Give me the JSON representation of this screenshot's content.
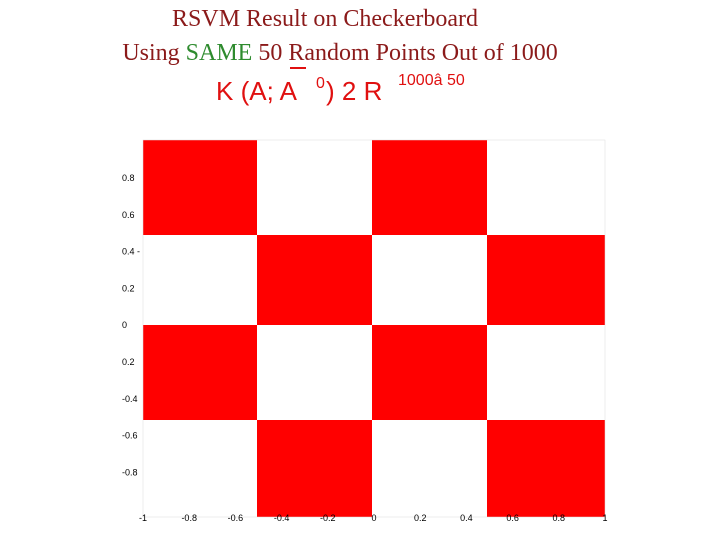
{
  "header": {
    "title_line1": "RSVM Result on Checkerboard",
    "title_line2": [
      "Using ",
      "SAME",
      " 50 Random Points Out of 1000"
    ]
  },
  "formula": {
    "main": "K (A; A",
    "prime": "0",
    "rest": ") 2 R",
    "superscript": "1000â 50"
  },
  "plot": {
    "x_tick_labels": [
      "-1",
      "-0.8",
      "-0.6",
      "-0.4",
      "-0.2",
      "0",
      "0.2",
      "0.4",
      "0.6",
      "0.8",
      "1"
    ],
    "y_tick_labels": [
      "0.8",
      "0.6",
      "0.4 -",
      "0.2",
      "0",
      "0.2",
      "-0.4",
      "-0.6",
      "-0.8"
    ]
  }
}
